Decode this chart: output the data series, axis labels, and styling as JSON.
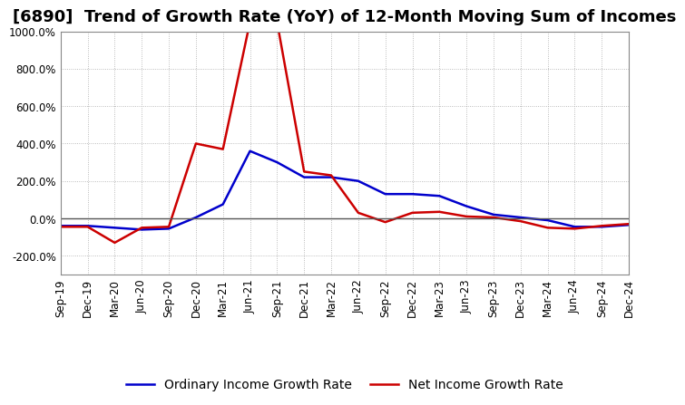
{
  "title": "[6890]  Trend of Growth Rate (YoY) of 12-Month Moving Sum of Incomes",
  "x_labels": [
    "Sep-19",
    "Dec-19",
    "Mar-20",
    "Jun-20",
    "Sep-20",
    "Dec-20",
    "Mar-21",
    "Jun-21",
    "Sep-21",
    "Dec-21",
    "Mar-22",
    "Jun-22",
    "Sep-22",
    "Dec-22",
    "Mar-23",
    "Jun-23",
    "Sep-23",
    "Dec-23",
    "Mar-24",
    "Jun-24",
    "Sep-24",
    "Dec-24"
  ],
  "ordinary_income": [
    -40,
    -40,
    -50,
    -60,
    -55,
    5,
    75,
    360,
    300,
    220,
    220,
    200,
    130,
    130,
    120,
    65,
    20,
    5,
    -10,
    -45,
    -45,
    -35
  ],
  "net_income": [
    -45,
    -45,
    -130,
    -50,
    -45,
    400,
    370,
    1050,
    1050,
    250,
    230,
    30,
    -20,
    30,
    35,
    10,
    5,
    -15,
    -50,
    -55,
    -40,
    -30
  ],
  "ylim": [
    -300,
    1000
  ],
  "yticks": [
    -200,
    0,
    200,
    400,
    600,
    800,
    1000
  ],
  "ordinary_color": "#0000CC",
  "net_color": "#CC0000",
  "background_color": "#FFFFFF",
  "grid_color": "#AAAAAA",
  "zero_line_color": "#555555",
  "legend_ordinary": "Ordinary Income Growth Rate",
  "legend_net": "Net Income Growth Rate",
  "title_fontsize": 13,
  "axis_fontsize": 8.5,
  "legend_fontsize": 10,
  "line_width": 1.8
}
